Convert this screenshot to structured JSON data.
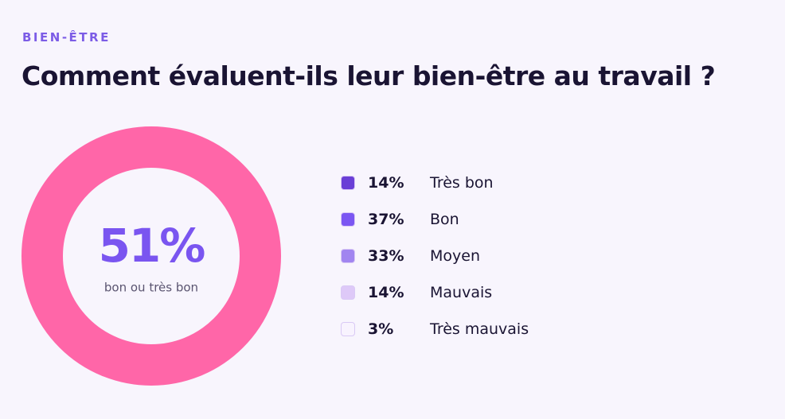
{
  "header": {
    "kicker": "BIEN-ÊTRE",
    "title": "Comment évaluent-ils leur bien-être au travail ?"
  },
  "donut": {
    "color": "#ff66a8",
    "value": "51%",
    "caption": "bon ou très bon"
  },
  "legend": {
    "items": [
      {
        "value": "14%",
        "label": "Très bon",
        "color": "#6a3fd6"
      },
      {
        "value": "37%",
        "label": "Bon",
        "color": "#7b56f2"
      },
      {
        "value": "33%",
        "label": "Moyen",
        "color": "#a185f0"
      },
      {
        "value": "14%",
        "label": "Mauvais",
        "color": "#dec9f8"
      },
      {
        "value": "3%",
        "label": "Très mauvais",
        "color": "#f8f3fe"
      }
    ]
  }
}
